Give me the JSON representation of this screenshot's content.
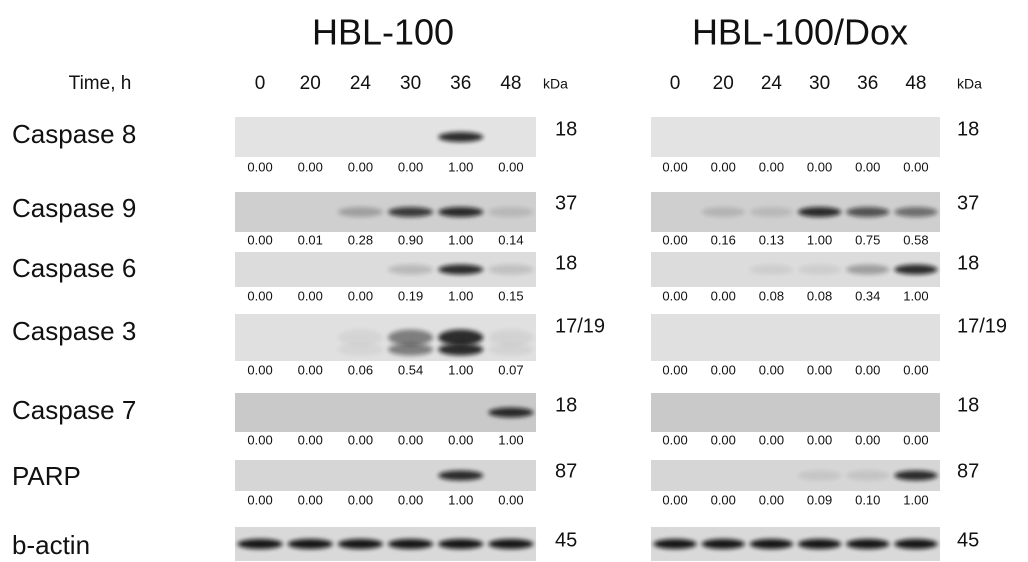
{
  "time_label": "Time, h",
  "rows": [
    "Caspase 8",
    "Caspase 9",
    "Caspase 6",
    "Caspase 3",
    "Caspase 7",
    "PARP",
    "b-actin"
  ],
  "panels": [
    {
      "title": "HBL-100",
      "times": [
        "0",
        "20",
        "24",
        "30",
        "36",
        "48"
      ],
      "kda_label": "kDa",
      "kda": [
        "18",
        "37",
        "18",
        "17/19",
        "18",
        "87",
        "45"
      ],
      "values": [
        [
          "0.00",
          "0.00",
          "0.00",
          "0.00",
          "1.00",
          "0.00"
        ],
        [
          "0.00",
          "0.01",
          "0.28",
          "0.90",
          "1.00",
          "0.14"
        ],
        [
          "0.00",
          "0.00",
          "0.00",
          "0.19",
          "1.00",
          "0.15"
        ],
        [
          "0.00",
          "0.00",
          "0.06",
          "0.54",
          "1.00",
          "0.07"
        ],
        [
          "0.00",
          "0.00",
          "0.00",
          "0.00",
          "0.00",
          "1.00"
        ],
        [
          "0.00",
          "0.00",
          "0.00",
          "0.00",
          "1.00",
          "0.00"
        ]
      ]
    },
    {
      "title": "HBL-100/Dox",
      "times": [
        "0",
        "20",
        "24",
        "30",
        "36",
        "48"
      ],
      "kda_label": "kDa",
      "kda": [
        "18",
        "37",
        "18",
        "17/19",
        "18",
        "87",
        "45"
      ],
      "values": [
        [
          "0.00",
          "0.00",
          "0.00",
          "0.00",
          "0.00",
          "0.00"
        ],
        [
          "0.00",
          "0.16",
          "0.13",
          "1.00",
          "0.75",
          "0.58"
        ],
        [
          "0.00",
          "0.00",
          "0.08",
          "0.08",
          "0.34",
          "1.00"
        ],
        [
          "0.00",
          "0.00",
          "0.00",
          "0.00",
          "0.00",
          "0.00"
        ],
        [
          "0.00",
          "0.00",
          "0.00",
          "0.00",
          "0.00",
          "0.00"
        ],
        [
          "0.00",
          "0.00",
          "0.00",
          "0.09",
          "0.10",
          "1.00"
        ]
      ]
    }
  ]
}
